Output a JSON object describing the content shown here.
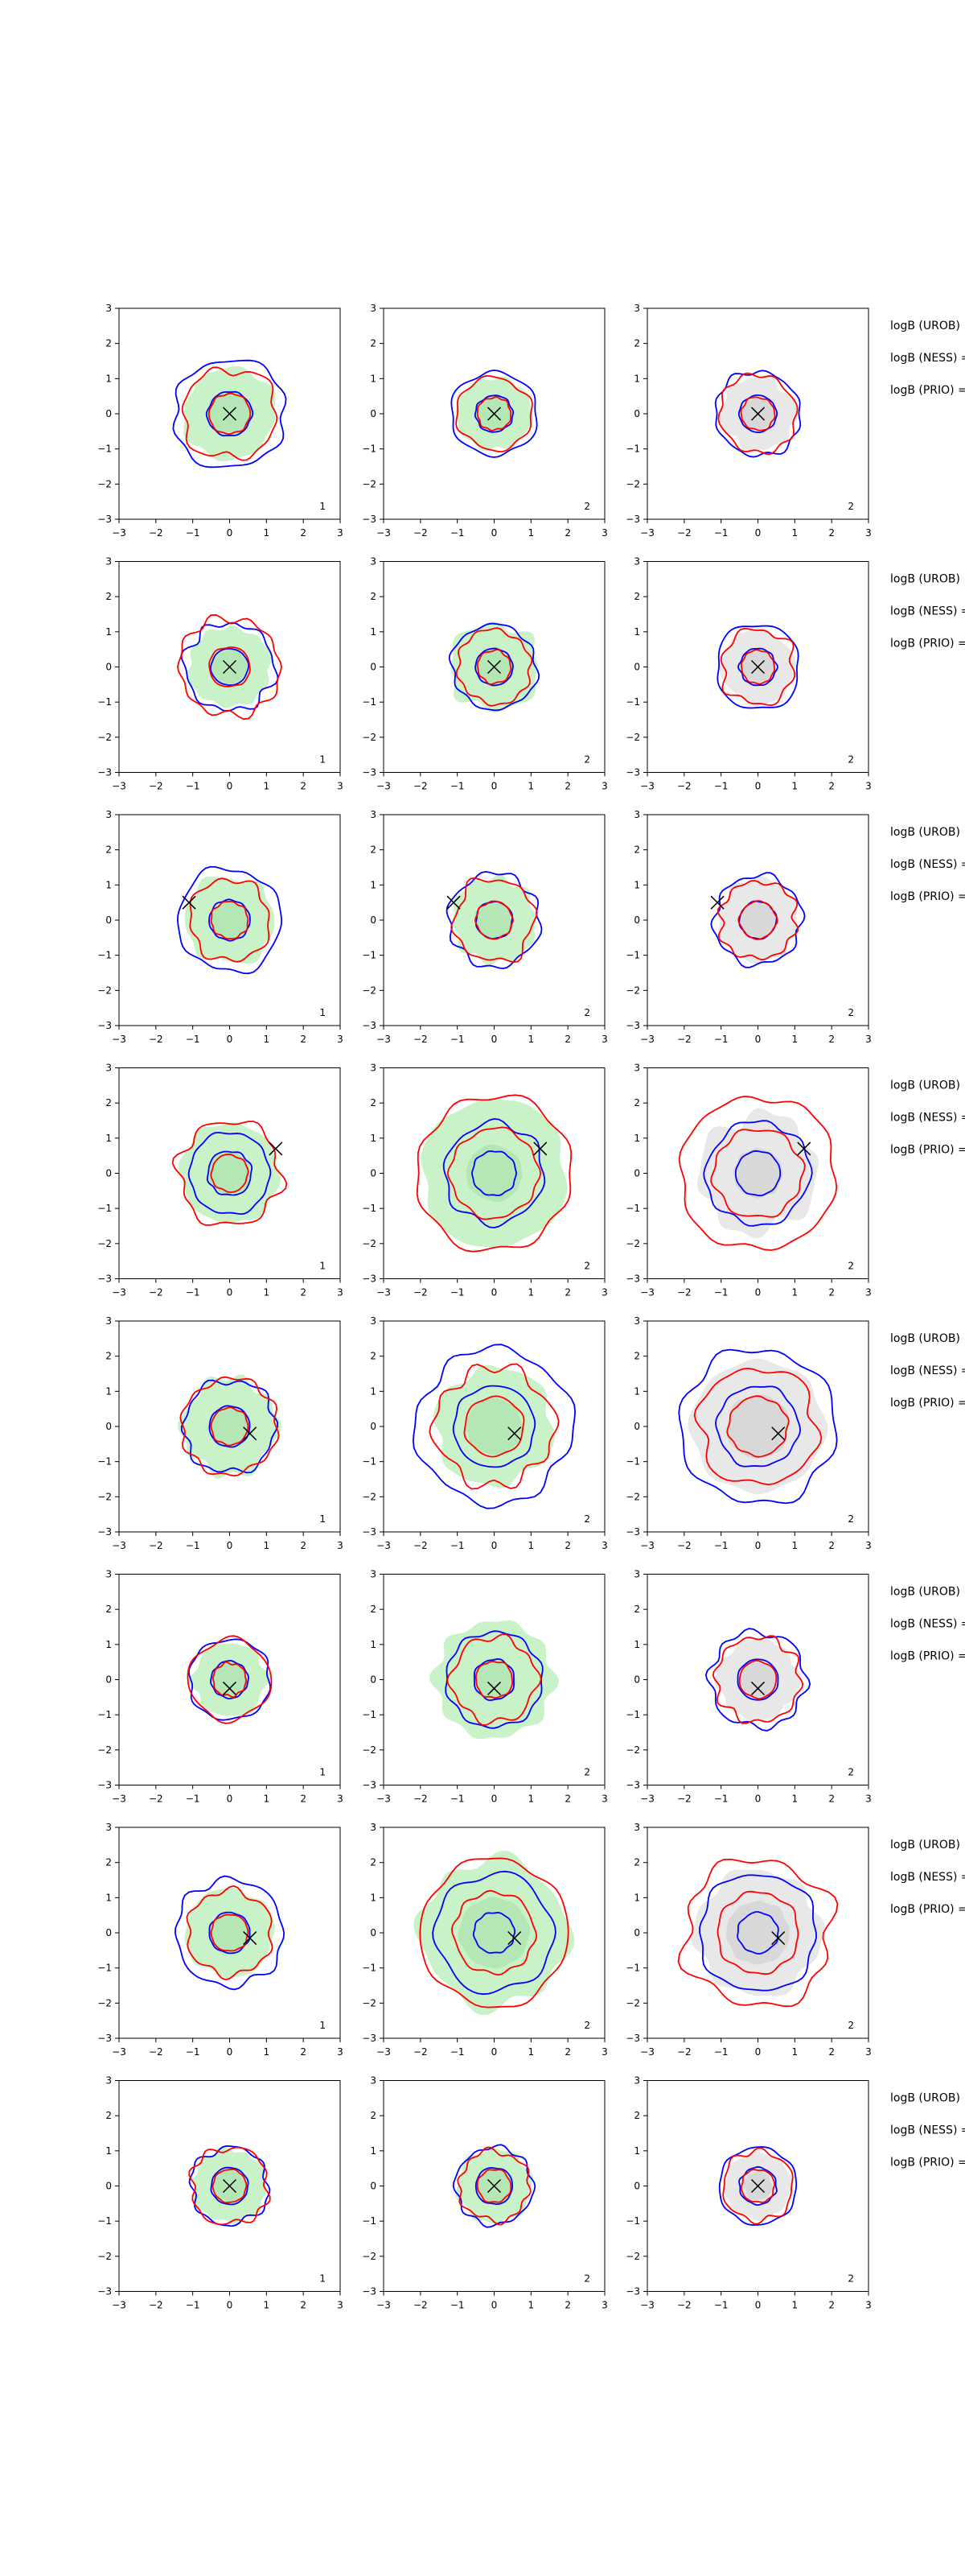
{
  "chart_data": {
    "type": "contour-grid",
    "rows": 8,
    "cols": 3,
    "xlim": [
      -3,
      3
    ],
    "ylim": [
      -3,
      3
    ],
    "xticks": [
      "−3",
      "−2",
      "−1",
      "0",
      "1",
      "2",
      "3"
    ],
    "yticks": [
      "3",
      "2",
      "1",
      "0",
      "−1",
      "−2",
      "−3"
    ],
    "side_labels": [
      "logB (UROB)",
      "logB (NESS) =",
      "logB (PRIO) ="
    ],
    "colors": {
      "blue": "#0000ff",
      "red": "#ff0000",
      "green_fill": "#c9f2c9",
      "gray_fill": "#e8e8e8",
      "marker": "#000000"
    },
    "panel_fill": [
      "green",
      "green",
      "gray"
    ],
    "panels": [
      [
        {
          "label": "1",
          "marker": [
            0,
            0
          ],
          "fill": [
            1.25,
            0.65
          ],
          "blue": [
            1.5,
            0.6
          ],
          "red": [
            1.25,
            0.55
          ]
        },
        {
          "label": "2",
          "marker": [
            0,
            0
          ],
          "fill": [
            1.0,
            0.5
          ],
          "blue": [
            1.15,
            0.5
          ],
          "red": [
            1.0,
            0.45
          ]
        },
        {
          "label": "2",
          "marker": [
            0,
            0
          ],
          "fill": [
            1.0,
            0.45
          ],
          "blue": [
            1.15,
            0.5
          ],
          "red": [
            1.05,
            0.45
          ]
        }
      ],
      [
        {
          "label": "1",
          "marker": [
            0,
            0
          ],
          "fill": [
            1.1,
            0.5
          ],
          "blue": [
            1.2,
            0.5
          ],
          "red": [
            1.35,
            0.55
          ]
        },
        {
          "label": "2",
          "marker": [
            0,
            0
          ],
          "fill": [
            1.2,
            0.55
          ],
          "blue": [
            1.15,
            0.5
          ],
          "red": [
            1.0,
            0.45
          ]
        },
        {
          "label": "2",
          "marker": [
            0,
            0
          ],
          "fill": [
            1.0,
            0.45
          ],
          "blue": [
            1.15,
            0.5
          ],
          "red": [
            1.0,
            0.45
          ]
        }
      ],
      [
        {
          "label": "1",
          "marker": [
            -1.1,
            0.5
          ],
          "fill": [
            1.2,
            0.55
          ],
          "blue": [
            1.4,
            0.55
          ],
          "red": [
            1.1,
            0.5
          ]
        },
        {
          "label": "2",
          "marker": [
            -1.1,
            0.5
          ],
          "fill": [
            1.15,
            0.55
          ],
          "blue": [
            1.25,
            0.5
          ],
          "red": [
            1.1,
            0.5
          ]
        },
        {
          "label": "2",
          "marker": [
            -1.1,
            0.5
          ],
          "fill": [
            1.1,
            0.5
          ],
          "blue": [
            1.2,
            0.5
          ],
          "red": [
            1.05,
            0.5
          ]
        }
      ],
      [
        {
          "label": "1",
          "marker": [
            1.25,
            0.7
          ],
          "fill": [
            1.35,
            0.6
          ],
          "blue": [
            1.1,
            0.6
          ],
          "red": [
            1.4,
            0.5
          ]
        },
        {
          "label": "2",
          "marker": [
            1.25,
            0.7
          ],
          "fill": [
            2.0,
            0.8
          ],
          "blue": [
            1.35,
            0.6
          ],
          "red": [
            2.1,
            1.2
          ]
        },
        {
          "label": "2",
          "marker": [
            1.25,
            0.7
          ],
          "fill": [
            1.6,
            0.7
          ],
          "blue": [
            1.4,
            0.6
          ],
          "red": [
            2.1,
            1.2
          ]
        }
      ],
      [
        {
          "label": "1",
          "marker": [
            0.55,
            -0.2
          ],
          "fill": [
            1.3,
            0.6
          ],
          "blue": [
            1.25,
            0.55
          ],
          "red": [
            1.3,
            0.5
          ]
        },
        {
          "label": "2",
          "marker": [
            0.55,
            -0.2
          ],
          "fill": [
            1.6,
            0.8
          ],
          "blue": [
            2.1,
            1.1
          ],
          "red": [
            1.6,
            0.8
          ]
        },
        {
          "label": "2",
          "marker": [
            0.55,
            -0.2
          ],
          "fill": [
            1.8,
            0.9
          ],
          "blue": [
            2.1,
            1.1
          ],
          "red": [
            1.6,
            0.8
          ]
        }
      ],
      [
        {
          "label": "1",
          "marker": [
            0,
            -0.25
          ],
          "fill": [
            1.0,
            0.5
          ],
          "blue": [
            1.1,
            0.5
          ],
          "red": [
            1.1,
            0.45
          ]
        },
        {
          "label": "2",
          "marker": [
            0,
            -0.25
          ],
          "fill": [
            1.6,
            0.6
          ],
          "blue": [
            1.3,
            0.55
          ],
          "red": [
            1.15,
            0.5
          ]
        },
        {
          "label": "2",
          "marker": [
            0,
            -0.25
          ],
          "fill": [
            1.1,
            0.5
          ],
          "blue": [
            1.3,
            0.55
          ],
          "red": [
            1.15,
            0.5
          ]
        }
      ],
      [
        {
          "label": "1",
          "marker": [
            0.55,
            -0.15
          ],
          "fill": [
            1.2,
            0.6
          ],
          "blue": [
            1.45,
            0.55
          ],
          "red": [
            1.15,
            0.5
          ]
        },
        {
          "label": "2",
          "marker": [
            0.55,
            -0.15
          ],
          "fill": [
            2.0,
            1.0
          ],
          "blue": [
            1.6,
            0.55
          ],
          "red": [
            2.0,
            1.1
          ]
        },
        {
          "label": "2",
          "marker": [
            0.55,
            -0.15
          ],
          "fill": [
            1.7,
            0.9
          ],
          "blue": [
            1.6,
            0.55
          ],
          "red": [
            2.0,
            1.1
          ]
        }
      ],
      [
        {
          "label": "1",
          "marker": [
            0,
            0
          ],
          "fill": [
            1.0,
            0.45
          ],
          "blue": [
            1.05,
            0.5
          ],
          "red": [
            1.05,
            0.45
          ]
        },
        {
          "label": "2",
          "marker": [
            0,
            0
          ],
          "fill": [
            1.0,
            0.5
          ],
          "blue": [
            1.05,
            0.5
          ],
          "red": [
            0.95,
            0.45
          ]
        },
        {
          "label": "2",
          "marker": [
            0,
            0
          ],
          "fill": [
            0.9,
            0.4
          ],
          "blue": [
            1.05,
            0.5
          ],
          "red": [
            0.95,
            0.45
          ]
        }
      ]
    ]
  }
}
